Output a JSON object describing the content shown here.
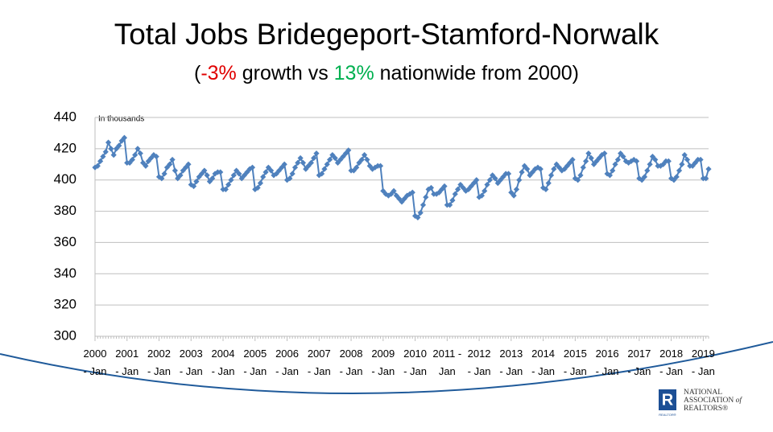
{
  "chart_data": {
    "type": "line",
    "title": "Total Jobs Bridegeport-Stamford-Norwalk",
    "subtitle": {
      "open": "(",
      "local": "-3%",
      "mid": " growth vs ",
      "national": "13%",
      "end": " nationwide from 2000)",
      "local_color": "#e00000",
      "national_color": "#00b050"
    },
    "annotation": "In thousands",
    "logo": {
      "mark": "R",
      "line1": "NATIONAL",
      "line2": "ASSOCIATION",
      "line2b": "of",
      "line3": "REALTORS®",
      "small": "REALTOR®"
    },
    "categories": [
      "2000 - Jan",
      null,
      null,
      null,
      null,
      null,
      null,
      null,
      null,
      null,
      null,
      null,
      "2001 - Jan",
      null,
      null,
      null,
      null,
      null,
      null,
      null,
      null,
      null,
      null,
      null,
      "2002 - Jan",
      null,
      null,
      null,
      null,
      null,
      null,
      null,
      null,
      null,
      null,
      null,
      "2003 - Jan",
      null,
      null,
      null,
      null,
      null,
      null,
      null,
      null,
      null,
      null,
      null,
      "2004 - Jan",
      null,
      null,
      null,
      null,
      null,
      null,
      null,
      null,
      null,
      null,
      null,
      "2005 - Jan",
      null,
      null,
      null,
      null,
      null,
      null,
      null,
      null,
      null,
      null,
      null,
      "2006 - Jan",
      null,
      null,
      null,
      null,
      null,
      null,
      null,
      null,
      null,
      null,
      null,
      "2007 - Jan",
      null,
      null,
      null,
      null,
      null,
      null,
      null,
      null,
      null,
      null,
      null,
      "2008 - Jan",
      null,
      null,
      null,
      null,
      null,
      null,
      null,
      null,
      null,
      null,
      null,
      "2009 - Jan",
      null,
      null,
      null,
      null,
      null,
      null,
      null,
      null,
      null,
      null,
      null,
      "2010 - Jan",
      null,
      null,
      null,
      null,
      null,
      null,
      null,
      null,
      null,
      null,
      null,
      "2011 - Jan",
      null,
      null,
      null,
      null,
      null,
      null,
      null,
      null,
      null,
      null,
      null,
      "2012 - Jan",
      null,
      null,
      null,
      null,
      null,
      null,
      null,
      null,
      null,
      null,
      null,
      "2013 - Jan",
      null,
      null,
      null,
      null,
      null,
      null,
      null,
      null,
      null,
      null,
      null,
      "2014 - Jan",
      null,
      null,
      null,
      null,
      null,
      null,
      null,
      null,
      null,
      null,
      null,
      "2015 - Jan",
      null,
      null,
      null,
      null,
      null,
      null,
      null,
      null,
      null,
      null,
      null,
      "2016 - Jan",
      null,
      null,
      null,
      null,
      null,
      null,
      null,
      null,
      null,
      null,
      null,
      "2017 - Jan",
      null,
      null,
      null,
      null,
      null,
      null,
      null,
      null,
      null,
      null,
      null,
      "2018 - Jan",
      null,
      null,
      null,
      null,
      null,
      null,
      null,
      null,
      null,
      null,
      null,
      "2019 - Jan",
      null,
      null
    ],
    "series": [
      {
        "name": "Total Jobs",
        "color": "#4f81bd",
        "values": [
          408,
          409,
          412,
          415,
          418,
          424,
          420,
          416,
          420,
          422,
          425,
          427,
          411,
          411,
          413,
          416,
          420,
          417,
          411,
          409,
          412,
          414,
          416,
          415,
          402,
          401,
          404,
          408,
          410,
          413,
          406,
          401,
          403,
          406,
          408,
          410,
          397,
          396,
          399,
          402,
          404,
          406,
          403,
          399,
          401,
          404,
          405,
          405,
          394,
          394,
          397,
          400,
          403,
          406,
          404,
          401,
          403,
          405,
          407,
          408,
          394,
          395,
          398,
          402,
          405,
          408,
          406,
          403,
          404,
          406,
          408,
          410,
          400,
          401,
          404,
          408,
          411,
          414,
          411,
          407,
          409,
          411,
          414,
          417,
          403,
          404,
          407,
          410,
          413,
          416,
          414,
          411,
          413,
          415,
          417,
          419,
          406,
          406,
          408,
          411,
          413,
          416,
          413,
          409,
          407,
          408,
          409,
          409,
          393,
          391,
          390,
          391,
          393,
          390,
          388,
          386,
          388,
          390,
          391,
          392,
          377,
          376,
          379,
          384,
          389,
          394,
          395,
          391,
          391,
          392,
          394,
          396,
          384,
          384,
          387,
          391,
          394,
          397,
          395,
          393,
          394,
          396,
          398,
          400,
          389,
          390,
          393,
          397,
          400,
          403,
          401,
          398,
          400,
          402,
          404,
          404,
          392,
          390,
          394,
          400,
          405,
          409,
          407,
          403,
          405,
          407,
          408,
          407,
          395,
          394,
          398,
          403,
          407,
          410,
          408,
          406,
          407,
          409,
          411,
          413,
          401,
          400,
          403,
          408,
          412,
          417,
          414,
          410,
          412,
          414,
          416,
          417,
          404,
          403,
          406,
          410,
          413,
          417,
          415,
          412,
          411,
          412,
          413,
          412,
          401,
          400,
          402,
          406,
          410,
          415,
          413,
          409,
          409,
          410,
          412,
          412,
          401,
          400,
          402,
          406,
          410,
          416,
          413,
          409,
          409,
          411,
          413,
          413,
          401,
          401,
          407
        ]
      }
    ],
    "ylim": [
      300,
      440
    ],
    "yticks": [
      300,
      320,
      340,
      360,
      380,
      400,
      420,
      440
    ],
    "grid": true
  }
}
